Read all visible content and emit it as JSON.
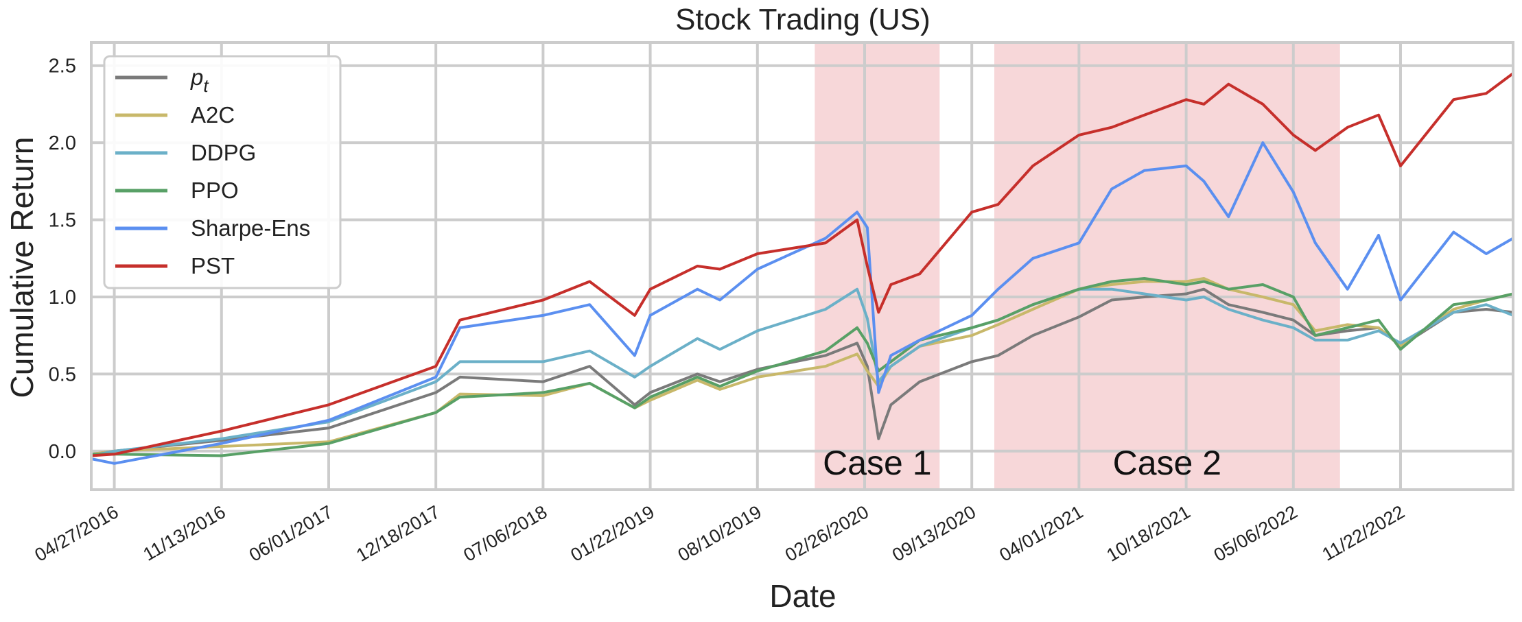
{
  "chart_data": {
    "type": "line",
    "title": "Stock Trading (US)",
    "xlabel": "Date",
    "ylabel": "Cumulative Return",
    "x_tick_labels": [
      "04/27/2016",
      "11/13/2016",
      "06/01/2017",
      "12/18/2017",
      "07/06/2018",
      "01/22/2019",
      "08/10/2019",
      "02/26/2020",
      "09/13/2020",
      "04/01/2021",
      "10/18/2021",
      "05/06/2022",
      "11/22/2022"
    ],
    "x_range": [
      "03/15/2016",
      "06/20/2023"
    ],
    "y_ticks": [
      0.0,
      0.5,
      1.0,
      1.5,
      2.0,
      2.5
    ],
    "y_tick_labels": [
      "0.0",
      "0.5",
      "1.0",
      "1.5",
      "2.0",
      "2.5"
    ],
    "ylim": [
      -0.25,
      2.65
    ],
    "grid": true,
    "legend_position": "top-left",
    "shaded_regions": [
      {
        "label": "Case 1",
        "start": "11/25/2019",
        "end": "07/15/2020",
        "color": "#f4c9cc"
      },
      {
        "label": "Case 2",
        "start": "10/25/2020",
        "end": "08/01/2022",
        "color": "#f4c9cc"
      }
    ],
    "x": [
      "03/15/2016",
      "04/27/2016",
      "11/13/2016",
      "06/01/2017",
      "12/18/2017",
      "02/01/2018",
      "07/06/2018",
      "10/01/2018",
      "12/24/2018",
      "01/22/2019",
      "04/20/2019",
      "06/01/2019",
      "08/10/2019",
      "12/15/2019",
      "02/12/2020",
      "03/02/2020",
      "03/23/2020",
      "04/15/2020",
      "06/08/2020",
      "09/13/2020",
      "11/01/2020",
      "01/05/2021",
      "04/01/2021",
      "06/01/2021",
      "08/01/2021",
      "10/18/2021",
      "11/20/2021",
      "01/05/2022",
      "03/10/2022",
      "05/06/2022",
      "06/16/2022",
      "08/15/2022",
      "10/12/2022",
      "11/22/2022",
      "03/01/2023",
      "05/01/2023",
      "06/20/2023"
    ],
    "series": [
      {
        "name": "p_t",
        "color": "#7a7a7a",
        "values": [
          -0.02,
          0.0,
          0.07,
          0.15,
          0.38,
          0.48,
          0.45,
          0.55,
          0.3,
          0.38,
          0.5,
          0.45,
          0.53,
          0.62,
          0.7,
          0.55,
          0.08,
          0.3,
          0.45,
          0.58,
          0.62,
          0.75,
          0.87,
          0.98,
          1.0,
          1.02,
          1.05,
          0.95,
          0.9,
          0.85,
          0.75,
          0.78,
          0.8,
          0.68,
          0.9,
          0.92,
          0.9
        ]
      },
      {
        "name": "A2C",
        "color": "#c8b86a",
        "values": [
          -0.02,
          0.0,
          0.03,
          0.06,
          0.25,
          0.37,
          0.36,
          0.44,
          0.28,
          0.33,
          0.46,
          0.4,
          0.48,
          0.55,
          0.63,
          0.52,
          0.42,
          0.55,
          0.68,
          0.75,
          0.82,
          0.92,
          1.05,
          1.08,
          1.1,
          1.1,
          1.12,
          1.05,
          1.0,
          0.95,
          0.78,
          0.82,
          0.8,
          0.68,
          0.92,
          0.98,
          1.02
        ]
      },
      {
        "name": "DDPG",
        "color": "#6bb0c8",
        "values": [
          -0.03,
          0.0,
          0.08,
          0.19,
          0.45,
          0.58,
          0.58,
          0.65,
          0.48,
          0.55,
          0.73,
          0.66,
          0.78,
          0.92,
          1.05,
          0.86,
          0.45,
          0.55,
          0.68,
          0.8,
          0.85,
          0.95,
          1.05,
          1.05,
          1.02,
          0.98,
          1.0,
          0.92,
          0.85,
          0.8,
          0.72,
          0.72,
          0.78,
          0.7,
          0.9,
          0.95,
          0.88
        ]
      },
      {
        "name": "PPO",
        "color": "#58a066",
        "values": [
          -0.02,
          -0.02,
          -0.03,
          0.05,
          0.25,
          0.35,
          0.38,
          0.44,
          0.28,
          0.35,
          0.48,
          0.42,
          0.52,
          0.65,
          0.8,
          0.7,
          0.52,
          0.58,
          0.72,
          0.8,
          0.85,
          0.95,
          1.05,
          1.1,
          1.12,
          1.08,
          1.1,
          1.05,
          1.08,
          1.0,
          0.75,
          0.8,
          0.85,
          0.66,
          0.95,
          0.98,
          1.02
        ]
      },
      {
        "name": "Sharpe-Ens",
        "color": "#5b8ff0",
        "values": [
          -0.05,
          -0.08,
          0.05,
          0.2,
          0.48,
          0.8,
          0.88,
          0.95,
          0.62,
          0.88,
          1.05,
          0.98,
          1.18,
          1.38,
          1.55,
          1.45,
          0.38,
          0.62,
          0.72,
          0.88,
          1.05,
          1.25,
          1.35,
          1.7,
          1.82,
          1.85,
          1.75,
          1.52,
          2.0,
          1.68,
          1.35,
          1.05,
          1.4,
          0.98,
          1.42,
          1.28,
          1.38
        ]
      },
      {
        "name": "PST",
        "color": "#c62f2b",
        "values": [
          -0.03,
          -0.02,
          0.13,
          0.3,
          0.55,
          0.85,
          0.98,
          1.1,
          0.88,
          1.05,
          1.2,
          1.18,
          1.28,
          1.35,
          1.5,
          1.2,
          0.9,
          1.08,
          1.15,
          1.55,
          1.6,
          1.85,
          2.05,
          2.1,
          2.18,
          2.28,
          2.25,
          2.38,
          2.25,
          2.05,
          1.95,
          2.1,
          2.18,
          1.85,
          2.28,
          2.32,
          2.45
        ]
      }
    ]
  },
  "legend": {
    "items": [
      {
        "label": "p",
        "sub": "t",
        "color": "#7a7a7a"
      },
      {
        "label": "A2C",
        "color": "#c8b86a"
      },
      {
        "label": "DDPG",
        "color": "#6bb0c8"
      },
      {
        "label": "PPO",
        "color": "#58a066"
      },
      {
        "label": "Sharpe-Ens",
        "color": "#5b8ff0"
      },
      {
        "label": "PST",
        "color": "#c62f2b"
      }
    ]
  },
  "colors": {
    "grid": "#cccccc",
    "axes_border": "#cccccc",
    "background": "#ffffff"
  }
}
